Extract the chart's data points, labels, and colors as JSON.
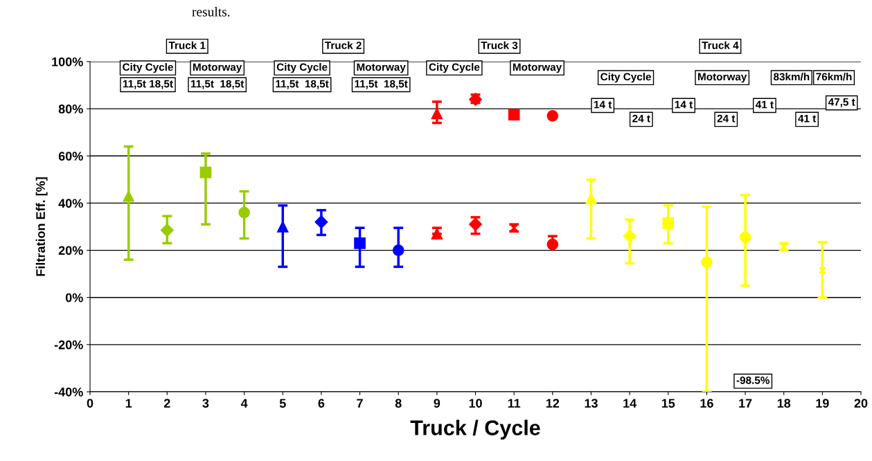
{
  "chart_data": {
    "type": "scatter",
    "xlabel": "Truck / Cycle",
    "ylabel": "Filtration Eff. [%]",
    "xlim": [
      0,
      20
    ],
    "xticks": [
      0,
      1,
      2,
      3,
      4,
      5,
      6,
      7,
      8,
      9,
      10,
      11,
      12,
      13,
      14,
      15,
      16,
      17,
      18,
      19,
      20
    ],
    "ylim": [
      -40,
      100
    ],
    "yticks": [
      {
        "value": -40,
        "label": "-40%"
      },
      {
        "value": -20,
        "label": "-20%"
      },
      {
        "value": 0,
        "label": "0%"
      },
      {
        "value": 20,
        "label": "20%"
      },
      {
        "value": 40,
        "label": "40%"
      },
      {
        "value": 60,
        "label": "60%"
      },
      {
        "value": 80,
        "label": "80%"
      },
      {
        "value": 100,
        "label": "100%"
      }
    ],
    "grid": "y",
    "series": [
      {
        "marker": "triangle",
        "x": [
          1,
          5,
          9,
          9,
          13
        ],
        "values": [
          43,
          30,
          78,
          27,
          42
        ],
        "colors": [
          "#99cc00",
          "#0000ff",
          "#ff0000",
          "#ff0000",
          "#ffff00"
        ],
        "errors": [
          [
            16,
            64
          ],
          [
            13,
            39
          ],
          [
            74,
            83
          ],
          [
            27,
            29.5
          ],
          [
            25,
            50
          ]
        ]
      },
      {
        "marker": "diamond",
        "x": [
          2,
          6,
          10,
          10,
          14
        ],
        "values": [
          28.5,
          32,
          84,
          31,
          26
        ],
        "colors": [
          "#99cc00",
          "#0000ff",
          "#ff0000",
          "#ff0000",
          "#ffff00"
        ],
        "errors": [
          [
            23,
            34.5
          ],
          [
            26.5,
            37
          ],
          [
            82.5,
            86
          ],
          [
            27,
            34
          ],
          [
            14.5,
            33
          ]
        ]
      },
      {
        "marker": "square",
        "x": [
          3,
          7,
          11,
          15
        ],
        "values": [
          53,
          23,
          77.5,
          31.5
        ],
        "colors": [
          "#99cc00",
          "#0000ff",
          "#ff0000",
          "#ffff00"
        ],
        "errors": [
          [
            31,
            61
          ],
          [
            13,
            29.5
          ],
          null,
          [
            23,
            39
          ]
        ]
      },
      {
        "marker": "circle",
        "x": [
          4,
          8,
          12,
          12,
          16,
          17
        ],
        "values": [
          36,
          20,
          77,
          22.5,
          15,
          25.5
        ],
        "colors": [
          "#99cc00",
          "#0000ff",
          "#ff0000",
          "#ff0000",
          "#ffff00",
          "#ffff00"
        ],
        "errors": [
          [
            25,
            45
          ],
          [
            13,
            29.5
          ],
          null,
          [
            22.5,
            26
          ],
          [
            -40,
            38.5
          ],
          [
            5,
            43.5
          ]
        ]
      },
      {
        "marker": "cross",
        "x": [
          11,
          18,
          19
        ],
        "values": [
          29.5,
          21.5,
          11.5
        ],
        "colors": [
          "#ff0000",
          "#ffff00",
          "#ffff00"
        ],
        "errors": [
          [
            28,
            31
          ],
          [
            20,
            23
          ],
          [
            0,
            23.5
          ]
        ]
      }
    ],
    "annotations": [
      "Truck 1",
      "Truck 2",
      "Truck 3",
      "Truck 4",
      "City Cycle",
      "Motorway",
      "City Cycle",
      "Motorway",
      "City Cycle",
      "Motorway",
      "11,5t 18,5t",
      "11,5t  18,5t",
      "11,5t  18,5t",
      "11,5t  18,5t",
      "City Cycle",
      "Motorway",
      "83km/h",
      "76km/h",
      "14 t",
      "24 t",
      "14 t",
      "24 t",
      "41 t",
      "41 t",
      "47,5 t",
      "-98.5%",
      "results."
    ]
  }
}
